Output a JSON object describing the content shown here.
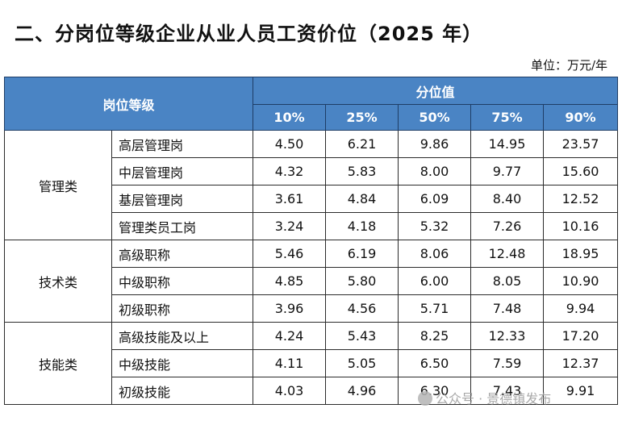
{
  "title": "二、分岗位等级企业从业人员工资价位（2025 年）",
  "unit": "单位：万元/年",
  "table": {
    "header_group": "岗位等级",
    "header_percentile": "分位值",
    "percentiles": [
      "10%",
      "25%",
      "50%",
      "75%",
      "90%"
    ],
    "groups": [
      {
        "category": "管理类",
        "rows": [
          {
            "post": "高层管理岗",
            "values": [
              "4.50",
              "6.21",
              "9.86",
              "14.95",
              "23.57"
            ]
          },
          {
            "post": "中层管理岗",
            "values": [
              "4.32",
              "5.83",
              "8.00",
              "9.77",
              "15.60"
            ]
          },
          {
            "post": "基层管理岗",
            "values": [
              "3.61",
              "4.84",
              "6.09",
              "8.40",
              "12.52"
            ]
          },
          {
            "post": "管理类员工岗",
            "values": [
              "3.24",
              "4.18",
              "5.32",
              "7.26",
              "10.16"
            ]
          }
        ]
      },
      {
        "category": "技术类",
        "rows": [
          {
            "post": "高级职称",
            "values": [
              "5.46",
              "6.19",
              "8.06",
              "12.48",
              "18.95"
            ]
          },
          {
            "post": "中级职称",
            "values": [
              "4.85",
              "5.80",
              "6.00",
              "8.05",
              "10.90"
            ]
          },
          {
            "post": "初级职称",
            "values": [
              "3.96",
              "4.56",
              "5.71",
              "7.48",
              "9.94"
            ]
          }
        ]
      },
      {
        "category": "技能类",
        "rows": [
          {
            "post": "高级技能及以上",
            "values": [
              "4.24",
              "5.43",
              "8.25",
              "12.33",
              "17.20"
            ]
          },
          {
            "post": "中级技能",
            "values": [
              "4.11",
              "5.05",
              "6.50",
              "7.59",
              "12.37"
            ]
          },
          {
            "post": "初级技能",
            "values": [
              "4.03",
              "4.96",
              "6.30",
              "7.43",
              "9.91"
            ]
          }
        ]
      }
    ]
  },
  "watermark": "公众号 · 景德镇发布"
}
